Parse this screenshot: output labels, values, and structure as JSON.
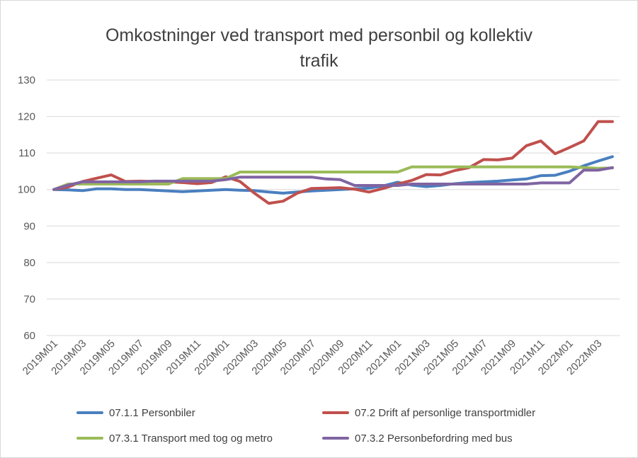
{
  "chart_data": {
    "type": "line",
    "title": "Omkostninger ved transport med personbil og kollektiv trafik",
    "title_lines": [
      "Omkostninger ved transport med personbil og kollektiv",
      "trafik"
    ],
    "xlabel": "",
    "ylabel": "",
    "ylim": [
      60,
      130
    ],
    "yticks": [
      "60",
      "70",
      "80",
      "90",
      "100",
      "110",
      "120",
      "130"
    ],
    "grid": true,
    "legend_position": "bottom",
    "x": [
      "2019M01",
      "2019M02",
      "2019M03",
      "2019M04",
      "2019M05",
      "2019M06",
      "2019M07",
      "2019M08",
      "2019M09",
      "2019M10",
      "2019M11",
      "2019M12",
      "2020M01",
      "2020M02",
      "2020M03",
      "2020M04",
      "2020M05",
      "2020M06",
      "2020M07",
      "2020M08",
      "2020M09",
      "2020M10",
      "2020M11",
      "2020M12",
      "2021M01",
      "2021M02",
      "2021M03",
      "2021M04",
      "2021M05",
      "2021M06",
      "2021M07",
      "2021M08",
      "2021M09",
      "2021M10",
      "2021M11",
      "2021M12",
      "2022M01",
      "2022M02",
      "2022M03",
      "2022M04"
    ],
    "xtick_labels": [
      "2019M01",
      "2019M03",
      "2019M05",
      "2019M07",
      "2019M09",
      "2019M11",
      "2020M01",
      "2020M03",
      "2020M05",
      "2020M07",
      "2020M09",
      "2020M11",
      "2021M01",
      "2021M03",
      "2021M05",
      "2021M07",
      "2021M09",
      "2021M11",
      "2022M01",
      "2022M03"
    ],
    "series": [
      {
        "name": "07.1.1 Personbiler",
        "color": "#4a7fbf",
        "values": [
          100,
          99.9,
          99.7,
          100.2,
          100.2,
          100,
          100,
          99.8,
          99.6,
          99.4,
          99.6,
          99.8,
          100,
          99.8,
          99.7,
          99.3,
          99.0,
          99.3,
          99.6,
          99.8,
          100.0,
          100.2,
          100.4,
          101.0,
          102.0,
          101.2,
          100.8,
          101.1,
          101.6,
          101.9,
          102.1,
          102.3,
          102.6,
          102.9,
          103.8,
          103.9,
          105.0,
          106.5,
          107.8,
          109.0
        ]
      },
      {
        "name": "07.2 Drift af personlige transportmidler",
        "color": "#c0504d",
        "values": [
          100,
          100.7,
          102.2,
          103.1,
          104.0,
          102.2,
          102.3,
          102.2,
          102.1,
          101.9,
          101.6,
          101.9,
          103.5,
          102.2,
          99.0,
          96.2,
          96.8,
          99.0,
          100.3,
          100.4,
          100.5,
          100.1,
          99.3,
          100.3,
          101.5,
          102.5,
          104.1,
          104.0,
          105.2,
          106.0,
          108.2,
          108.1,
          108.6,
          112.0,
          113.3,
          109.8,
          111.5,
          113.3,
          118.6,
          118.6
        ]
      },
      {
        "name": "07.3.1 Transport med tog og metro",
        "color": "#9bbb59",
        "values": [
          100,
          101.5,
          101.5,
          101.5,
          101.5,
          101.5,
          101.5,
          101.5,
          101.5,
          103.0,
          103.0,
          103.0,
          103.0,
          104.8,
          104.8,
          104.8,
          104.8,
          104.8,
          104.8,
          104.8,
          104.8,
          104.8,
          104.8,
          104.8,
          104.8,
          106.2,
          106.2,
          106.2,
          106.2,
          106.2,
          106.2,
          106.2,
          106.2,
          106.2,
          106.2,
          106.2,
          106.2,
          106.0,
          105.8,
          105.9
        ]
      },
      {
        "name": "07.3.2 Personbefordring med bus",
        "color": "#8064a2",
        "values": [
          100,
          101.2,
          102.1,
          102.1,
          102.1,
          102.1,
          102.1,
          102.3,
          102.3,
          102.3,
          102.3,
          102.3,
          102.7,
          103.4,
          103.4,
          103.4,
          103.4,
          103.4,
          103.4,
          102.9,
          102.7,
          101.1,
          101.1,
          101.1,
          101.1,
          101.5,
          101.5,
          101.5,
          101.5,
          101.5,
          101.5,
          101.5,
          101.5,
          101.5,
          101.8,
          101.8,
          101.8,
          105.3,
          105.3,
          106.0
        ]
      }
    ]
  }
}
